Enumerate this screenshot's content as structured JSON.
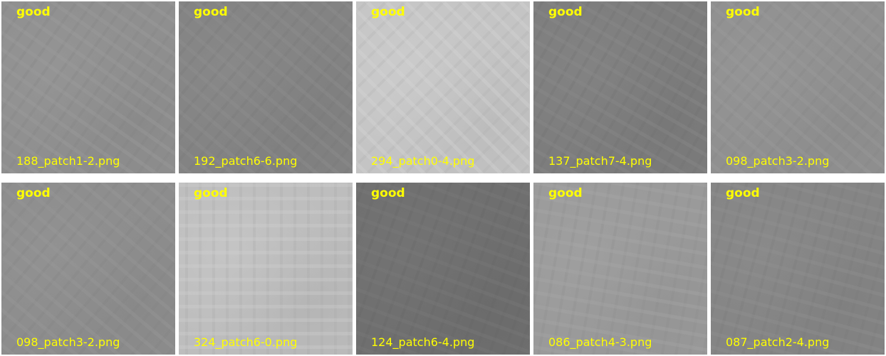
{
  "tiles": [
    {
      "label": "good",
      "filename": "188_patch1-2.png",
      "base": "#8f8f8f",
      "light": "#9d9d9d",
      "dark": "#828282",
      "angle": 35
    },
    {
      "label": "good",
      "filename": "192_patch6-6.png",
      "base": "#838383",
      "light": "#909090",
      "dark": "#777777",
      "angle": 40
    },
    {
      "label": "good",
      "filename": "294_patch0-4.png",
      "base": "#c4c4c4",
      "light": "#d6d6d6",
      "dark": "#b0b0b0",
      "angle": 45
    },
    {
      "label": "good",
      "filename": "137_patch7-4.png",
      "base": "#7d7d7d",
      "light": "#8b8b8b",
      "dark": "#707070",
      "angle": 30
    },
    {
      "label": "good",
      "filename": "098_patch3-2.png",
      "base": "#909090",
      "light": "#9c9c9c",
      "dark": "#858585",
      "angle": 40
    },
    {
      "label": "good",
      "filename": "098_patch3-2.png",
      "base": "#8d8d8d",
      "light": "#999999",
      "dark": "#828282",
      "angle": 40
    },
    {
      "label": "good",
      "filename": "324_patch6-0.png",
      "base": "#bdbdbd",
      "light": "#d0d0d0",
      "dark": "#a8a8a8",
      "angle": 0
    },
    {
      "label": "good",
      "filename": "124_patch6-4.png",
      "base": "#6f6f6f",
      "light": "#7a7a7a",
      "dark": "#656565",
      "angle": 20
    },
    {
      "label": "good",
      "filename": "086_patch4-3.png",
      "base": "#9a9a9a",
      "light": "#a7a7a7",
      "dark": "#8c8c8c",
      "angle": 10
    },
    {
      "label": "good",
      "filename": "087_patch2-4.png",
      "base": "#858585",
      "light": "#919191",
      "dark": "#797979",
      "angle": 15
    }
  ]
}
